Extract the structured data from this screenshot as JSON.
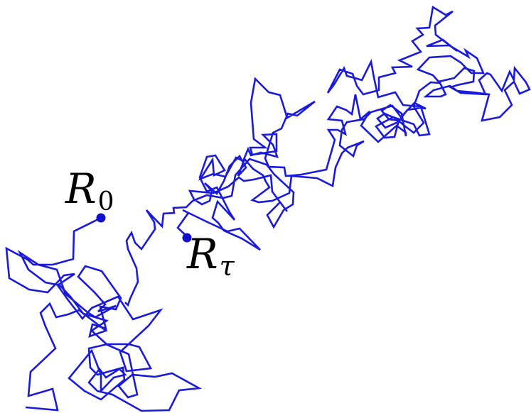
{
  "diagram": {
    "path_color": "#1a1adb",
    "marker_color": "#1111cc",
    "start_label": {
      "main": "R",
      "sub": "0"
    },
    "end_label": {
      "main": "R",
      "sub": "τ"
    }
  }
}
